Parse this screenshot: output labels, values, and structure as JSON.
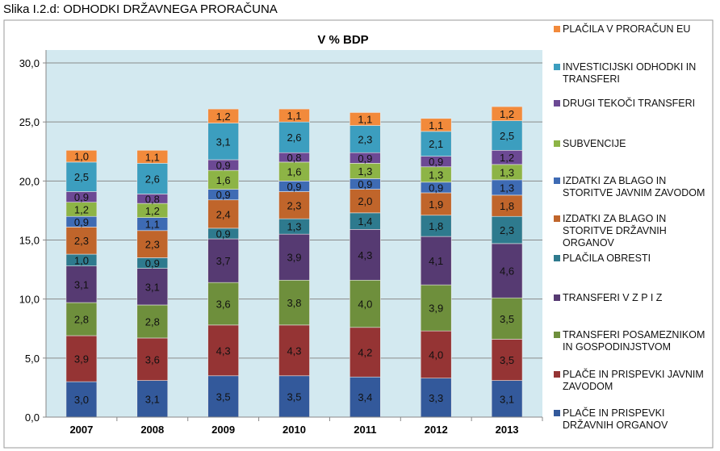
{
  "caption": "Slika I.2.d: ODHODKI DRŽAVNEGA PRORAČUNA",
  "chart_data": {
    "type": "bar",
    "stacked": true,
    "title": "V % BDP",
    "xlabel": "",
    "ylabel": "",
    "ylim": [
      0,
      30
    ],
    "yticks": [
      "0,0",
      "5,0",
      "10,0",
      "15,0",
      "20,0",
      "25,0",
      "30,0"
    ],
    "grid": true,
    "legend_position": "right",
    "categories": [
      "2007",
      "2008",
      "2009",
      "2010",
      "2011",
      "2012",
      "2013"
    ],
    "series": [
      {
        "name": "PLAČE IN PRISPEVKI DRŽAVNIH ORGANOV",
        "color": "#33599b",
        "values": [
          3.0,
          3.1,
          3.5,
          3.5,
          3.4,
          3.3,
          3.1
        ]
      },
      {
        "name": "PLAČE IN PRISPEVKI JAVNIM ZAVODOM",
        "color": "#953434",
        "values": [
          3.9,
          3.6,
          4.3,
          4.3,
          4.2,
          4.0,
          3.5
        ]
      },
      {
        "name": "TRANSFERI POSAMEZNIKOM IN GOSPODINJSTVOM",
        "color": "#6e8f3c",
        "values": [
          2.8,
          2.8,
          3.6,
          3.8,
          4.0,
          3.9,
          3.5
        ]
      },
      {
        "name": "TRANSFERI V  Z P I Z",
        "color": "#563a72",
        "values": [
          3.1,
          3.1,
          3.7,
          3.9,
          4.3,
          4.1,
          4.6
        ]
      },
      {
        "name": "PLAČILA OBRESTI",
        "color": "#2e7a8e",
        "values": [
          1.0,
          0.9,
          0.9,
          1.3,
          1.4,
          1.8,
          2.3
        ]
      },
      {
        "name": "IZDATKI ZA BLAGO IN STORITVE DRŽAVNIH ORGANOV",
        "color": "#c0652b",
        "values": [
          2.3,
          2.3,
          2.4,
          2.3,
          2.0,
          1.9,
          1.8
        ]
      },
      {
        "name": "IZDATKI ZA BLAGO IN STORITVE JAVNIM ZAVODOM",
        "color": "#3e6bb4",
        "values": [
          0.9,
          1.1,
          0.9,
          0.9,
          0.9,
          0.9,
          1.3
        ]
      },
      {
        "name": "SUBVENCIJE",
        "color": "#8db446",
        "values": [
          1.2,
          1.2,
          1.6,
          1.6,
          1.3,
          1.3,
          1.3
        ]
      },
      {
        "name": "DRUGI TEKOČI TRANSFERI",
        "color": "#6c4994",
        "values": [
          0.9,
          0.8,
          0.9,
          0.8,
          0.9,
          0.9,
          1.2
        ]
      },
      {
        "name": "INVESTICIJSKI ODHODKI IN TRANSFERI",
        "color": "#3c9ebf",
        "values": [
          2.5,
          2.6,
          3.1,
          2.6,
          2.3,
          2.1,
          2.5
        ]
      },
      {
        "name": "PLAČILA V PRORAČUN EU",
        "color": "#f28a3b",
        "values": [
          1.0,
          1.1,
          1.2,
          1.1,
          1.1,
          1.1,
          1.2
        ]
      }
    ]
  }
}
